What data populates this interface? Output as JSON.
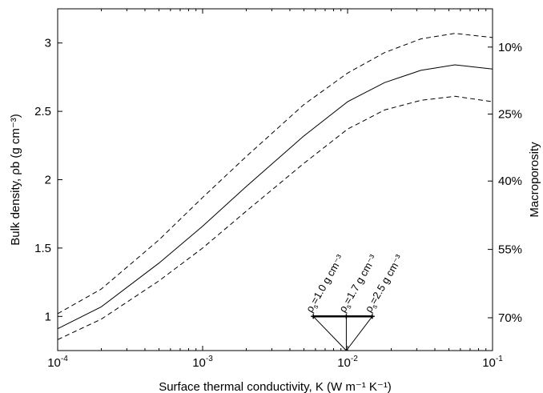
{
  "chart_data": {
    "type": "line",
    "xscale": "log",
    "xlim": [
      0.0001,
      0.1
    ],
    "ylim": [
      0.75,
      3.25
    ],
    "xlabel": "Surface thermal conductivity, K  (W m⁻¹ K⁻¹)",
    "ylabel": "Bulk density, ρb (g cm⁻³)",
    "y2label": "Macroporosity",
    "x_ticks": [
      {
        "value": 0.0001,
        "base": "10",
        "exp": "-4"
      },
      {
        "value": 0.001,
        "base": "10",
        "exp": "-3"
      },
      {
        "value": 0.01,
        "base": "10",
        "exp": "-2"
      },
      {
        "value": 0.1,
        "base": "10",
        "exp": "-1"
      }
    ],
    "y_ticks": [
      {
        "value": 1,
        "label": "1"
      },
      {
        "value": 1.5,
        "label": "1.5"
      },
      {
        "value": 2,
        "label": "2"
      },
      {
        "value": 2.5,
        "label": "2.5"
      },
      {
        "value": 3,
        "label": "3"
      }
    ],
    "y2_ticks": [
      {
        "value": 2.97,
        "label": "10%"
      },
      {
        "value": 2.48,
        "label": "25%"
      },
      {
        "value": 1.99,
        "label": "40%"
      },
      {
        "value": 1.49,
        "label": "55%"
      },
      {
        "value": 0.99,
        "label": "70%"
      }
    ],
    "series": [
      {
        "style": "dashed",
        "x": [
          0.0001,
          0.0002,
          0.0005,
          0.001,
          0.002,
          0.005,
          0.01,
          0.018,
          0.032,
          0.055,
          0.1
        ],
        "y": [
          1.02,
          1.2,
          1.56,
          1.87,
          2.17,
          2.55,
          2.78,
          2.93,
          3.03,
          3.07,
          3.04
        ]
      },
      {
        "style": "solid",
        "x": [
          0.0001,
          0.0002,
          0.0005,
          0.001,
          0.002,
          0.005,
          0.01,
          0.018,
          0.032,
          0.055,
          0.1
        ],
        "y": [
          0.91,
          1.07,
          1.39,
          1.66,
          1.95,
          2.32,
          2.57,
          2.71,
          2.8,
          2.84,
          2.81
        ]
      },
      {
        "style": "dashed",
        "x": [
          0.0001,
          0.0002,
          0.0005,
          0.001,
          0.002,
          0.005,
          0.01,
          0.018,
          0.032,
          0.055,
          0.1
        ],
        "y": [
          0.83,
          0.98,
          1.26,
          1.5,
          1.77,
          2.12,
          2.37,
          2.51,
          2.58,
          2.61,
          2.57
        ]
      }
    ],
    "annotations": [
      {
        "x": 0.0058,
        "y": 1.0,
        "rho": "ρ",
        "sub": "s",
        "text": "=1.0 g cm⁻³"
      },
      {
        "x": 0.0098,
        "y": 1.0,
        "rho": "ρ",
        "sub": "s",
        "text": "=1.7 g cm⁻³"
      },
      {
        "x": 0.0148,
        "y": 1.0,
        "rho": "ρ",
        "sub": "s",
        "text": "=2.5 g cm⁻³"
      }
    ],
    "annotation_apex": {
      "x": 0.0098,
      "y": 0.75
    },
    "grid": false,
    "legend": "none"
  }
}
